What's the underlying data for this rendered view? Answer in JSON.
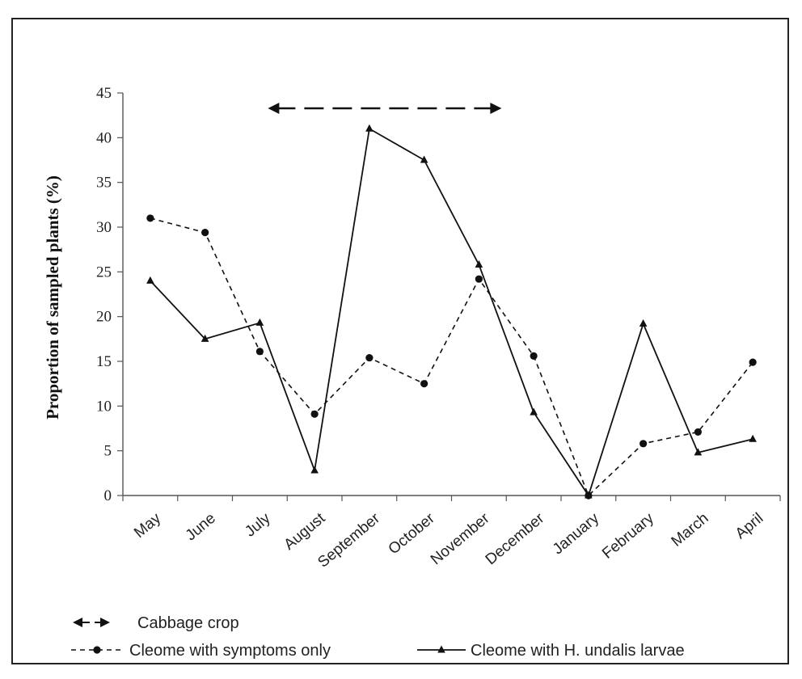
{
  "chart_data": {
    "type": "line",
    "title": "",
    "xlabel": "",
    "ylabel": "Proportion of sampled plants (%)",
    "ylim": [
      0,
      45
    ],
    "yticks": [
      0,
      5,
      10,
      15,
      20,
      25,
      30,
      35,
      40,
      45
    ],
    "grid": false,
    "legend_position": "bottom",
    "categories": [
      "May",
      "June",
      "July",
      "August",
      "September",
      "October",
      "November",
      "December",
      "January",
      "February",
      "March",
      "April"
    ],
    "series": [
      {
        "name": "Cleome with symptoms only",
        "style": "dashed",
        "marker": "circle",
        "values": [
          31.0,
          29.4,
          16.1,
          9.1,
          15.4,
          12.5,
          24.2,
          15.6,
          0.0,
          5.8,
          7.1,
          14.9
        ]
      },
      {
        "name": "Cleome with H. undalis larvae",
        "style": "solid",
        "marker": "triangle",
        "values": [
          24.0,
          17.5,
          19.3,
          2.8,
          41.0,
          37.5,
          25.8,
          9.3,
          0.0,
          19.2,
          4.8,
          6.3
        ]
      }
    ],
    "annotations": [
      {
        "label": "Cabbage crop",
        "type": "double-arrow",
        "style": "long-dash",
        "x_start": "July",
        "x_end": "November"
      }
    ]
  }
}
